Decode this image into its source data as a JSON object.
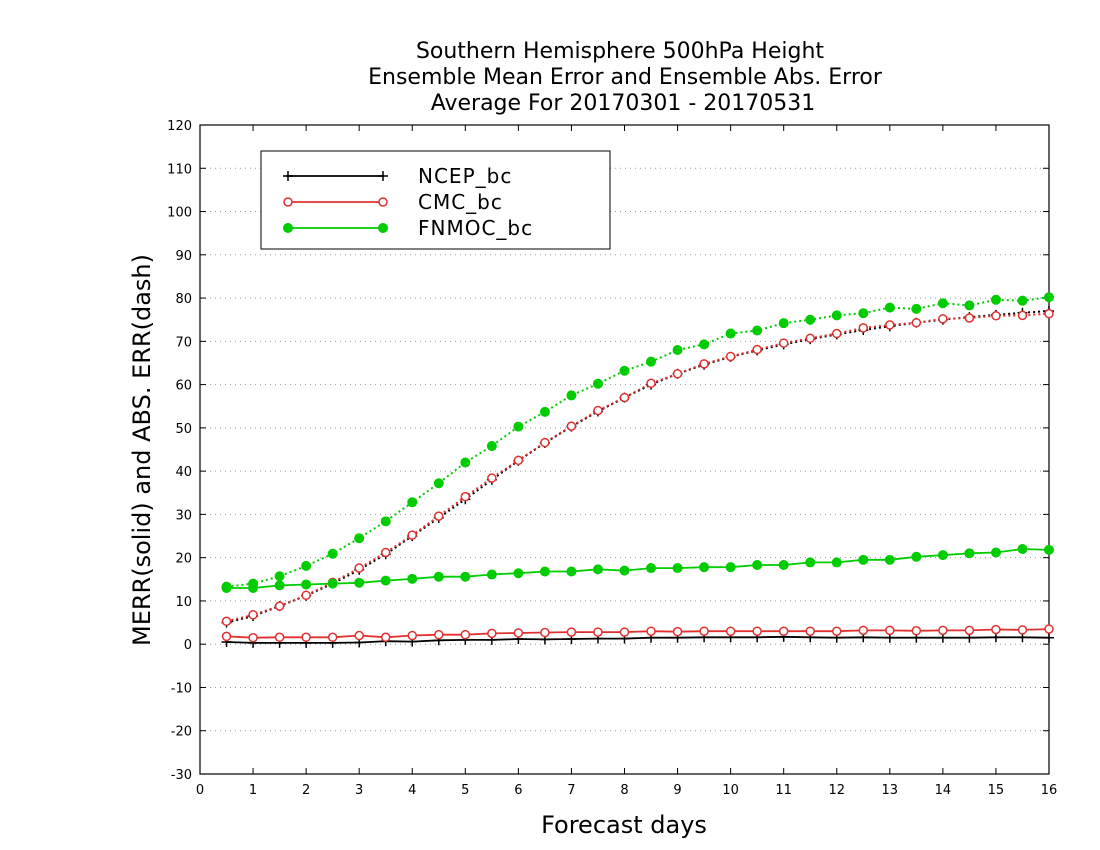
{
  "chart_data": {
    "type": "line",
    "title": [
      "Southern Hemisphere 500hPa Height",
      "Ensemble Mean Error and Ensemble Abs. Error",
      "Average For 20170301 - 20170531"
    ],
    "xlabel": "Forecast days",
    "ylabel": "MERR(solid) and ABS. ERR(dash)",
    "xlim": [
      0,
      16
    ],
    "ylim": [
      -30,
      120
    ],
    "xticks": [
      "0",
      "1",
      "2",
      "3",
      "4",
      "5",
      "6",
      "7",
      "8",
      "9",
      "10",
      "11",
      "12",
      "13",
      "14",
      "15",
      "16"
    ],
    "yticks": [
      "-30",
      "-20",
      "-10",
      "0",
      "10",
      "20",
      "30",
      "40",
      "50",
      "60",
      "70",
      "80",
      "90",
      "100",
      "110",
      "120"
    ],
    "grid": true,
    "legend_position": "top-left",
    "x": [
      0.5,
      1,
      1.5,
      2,
      2.5,
      3,
      3.5,
      4,
      4.5,
      5,
      5.5,
      6,
      6.5,
      7,
      7.5,
      8,
      8.5,
      9,
      9.5,
      10,
      10.5,
      11,
      11.5,
      12,
      12.5,
      13,
      13.5,
      14,
      14.5,
      15,
      15.5,
      16
    ],
    "series": [
      {
        "name": "NCEP_bc",
        "color": "#000000",
        "marker": "plus",
        "merr": [
          0.5,
          0.3,
          0.3,
          0.3,
          0.3,
          0.4,
          0.7,
          0.6,
          0.9,
          1.0,
          1.0,
          1.2,
          1.1,
          1.2,
          1.3,
          1.3,
          1.5,
          1.5,
          1.6,
          1.6,
          1.6,
          1.7,
          1.6,
          1.5,
          1.6,
          1.5,
          1.5,
          1.5,
          1.5,
          1.6,
          1.6,
          1.5
        ],
        "abs_err": [
          5,
          6.5,
          8.8,
          11.2,
          14,
          17.2,
          20.8,
          25,
          29.2,
          33.5,
          38,
          42.4,
          46.5,
          50.3,
          53.8,
          57,
          60,
          62.5,
          64.6,
          66.4,
          67.9,
          69.3,
          70.5,
          71.6,
          72.6,
          73.5,
          74.3,
          75,
          75.6,
          76.1,
          76.6,
          77
        ]
      },
      {
        "name": "CMC_bc",
        "color": "#e03030",
        "marker": "open-circle",
        "merr": [
          1.8,
          1.5,
          1.6,
          1.6,
          1.6,
          2.0,
          1.6,
          2.0,
          2.2,
          2.2,
          2.5,
          2.6,
          2.7,
          2.8,
          2.8,
          2.8,
          3.0,
          2.9,
          3.0,
          3.0,
          3.0,
          3.0,
          3.0,
          3.0,
          3.2,
          3.2,
          3.1,
          3.2,
          3.2,
          3.4,
          3.3,
          3.5
        ],
        "abs_err": [
          5.3,
          6.8,
          8.8,
          11.3,
          14.3,
          17.6,
          21.2,
          25.2,
          29.6,
          34.1,
          38.4,
          42.5,
          46.6,
          50.4,
          54,
          57,
          60.3,
          62.5,
          64.8,
          66.5,
          68.1,
          69.6,
          70.7,
          71.8,
          73.1,
          73.8,
          74.3,
          75.2,
          75.4,
          75.9,
          76,
          76.4
        ]
      },
      {
        "name": "FNMOC_bc",
        "color": "#00cc00",
        "marker": "filled-circle",
        "merr": [
          13,
          13,
          13.6,
          13.8,
          14,
          14.2,
          14.7,
          15.1,
          15.6,
          15.6,
          16.1,
          16.4,
          16.8,
          16.8,
          17.3,
          17,
          17.6,
          17.6,
          17.8,
          17.8,
          18.3,
          18.3,
          18.9,
          18.9,
          19.5,
          19.5,
          20.2,
          20.6,
          21,
          21.2,
          22,
          21.8
        ],
        "abs_err": [
          13.3,
          14,
          15.7,
          18.1,
          20.9,
          24.5,
          28.4,
          32.8,
          37.2,
          42,
          45.8,
          50.3,
          53.7,
          57.5,
          60.2,
          63.2,
          65.3,
          68,
          69.3,
          71.8,
          72.5,
          74.2,
          75,
          76,
          76.5,
          77.8,
          77.5,
          78.8,
          78.3,
          79.6,
          79.4,
          80.2
        ]
      }
    ]
  }
}
